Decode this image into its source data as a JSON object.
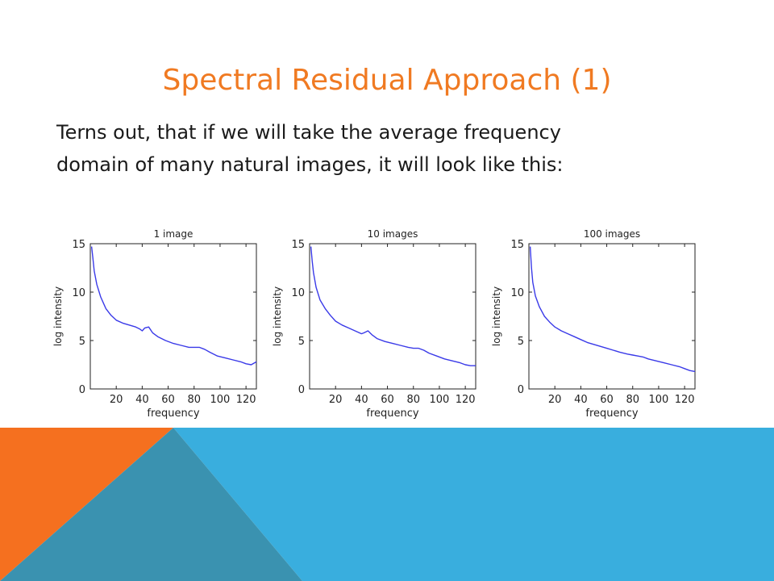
{
  "slide": {
    "title": "Spectral Residual Approach (1)",
    "body_line1": "Terns out, that if we will take the average frequency",
    "body_line2": "domain of many natural images, it will look like this:"
  },
  "colors": {
    "title": "#f07a22",
    "orange_shape": "#f5701f",
    "blue_shape": "#39aede",
    "teal_shape": "#3a92b0",
    "curve": "#3a3ae8"
  },
  "chart_data": [
    {
      "type": "line",
      "title": "1 image",
      "xlabel": "frequency",
      "ylabel": "log intensity",
      "xlim": [
        0,
        128
      ],
      "ylim": [
        0,
        15
      ],
      "xticks": [
        20,
        40,
        60,
        80,
        100,
        120
      ],
      "yticks": [
        0,
        5,
        10,
        15
      ],
      "x": [
        1,
        2,
        3,
        5,
        8,
        12,
        16,
        20,
        25,
        30,
        35,
        38,
        40,
        42,
        45,
        48,
        52,
        58,
        64,
        70,
        76,
        80,
        84,
        88,
        92,
        98,
        104,
        110,
        116,
        120,
        124,
        128
      ],
      "y": [
        14.7,
        13.5,
        12.2,
        10.8,
        9.5,
        8.3,
        7.6,
        7.1,
        6.8,
        6.6,
        6.4,
        6.2,
        6.0,
        6.3,
        6.4,
        5.8,
        5.4,
        5.0,
        4.7,
        4.5,
        4.3,
        4.3,
        4.3,
        4.1,
        3.8,
        3.4,
        3.2,
        3.0,
        2.8,
        2.6,
        2.5,
        2.8
      ]
    },
    {
      "type": "line",
      "title": "10 images",
      "xlabel": "frequency",
      "ylabel": "log intensity",
      "xlim": [
        0,
        128
      ],
      "ylim": [
        0,
        15
      ],
      "xticks": [
        20,
        40,
        60,
        80,
        100,
        120
      ],
      "yticks": [
        0,
        5,
        10,
        15
      ],
      "x": [
        1,
        2,
        3,
        5,
        8,
        12,
        16,
        20,
        25,
        30,
        35,
        40,
        42,
        45,
        48,
        52,
        58,
        64,
        70,
        76,
        80,
        84,
        88,
        92,
        98,
        104,
        110,
        116,
        120,
        124,
        128
      ],
      "y": [
        14.7,
        13.2,
        12.0,
        10.5,
        9.2,
        8.3,
        7.6,
        7.0,
        6.6,
        6.3,
        6.0,
        5.7,
        5.8,
        6.0,
        5.6,
        5.2,
        4.9,
        4.7,
        4.5,
        4.3,
        4.2,
        4.2,
        4.0,
        3.7,
        3.4,
        3.1,
        2.9,
        2.7,
        2.5,
        2.4,
        2.4
      ]
    },
    {
      "type": "line",
      "title": "100 images",
      "xlabel": "frequency",
      "ylabel": "log intensity",
      "xlim": [
        0,
        128
      ],
      "ylim": [
        0,
        15
      ],
      "xticks": [
        20,
        40,
        60,
        80,
        100,
        120
      ],
      "yticks": [
        0,
        5,
        10,
        15
      ],
      "x": [
        1,
        2,
        3,
        5,
        8,
        12,
        16,
        20,
        25,
        30,
        35,
        40,
        45,
        50,
        55,
        60,
        65,
        70,
        76,
        80,
        84,
        88,
        92,
        98,
        104,
        110,
        116,
        120,
        124,
        128
      ],
      "y": [
        14.7,
        12.5,
        11.0,
        9.6,
        8.5,
        7.5,
        6.9,
        6.4,
        6.0,
        5.7,
        5.4,
        5.1,
        4.8,
        4.6,
        4.4,
        4.2,
        4.0,
        3.8,
        3.6,
        3.5,
        3.4,
        3.3,
        3.1,
        2.9,
        2.7,
        2.5,
        2.3,
        2.1,
        1.9,
        1.8
      ]
    }
  ]
}
